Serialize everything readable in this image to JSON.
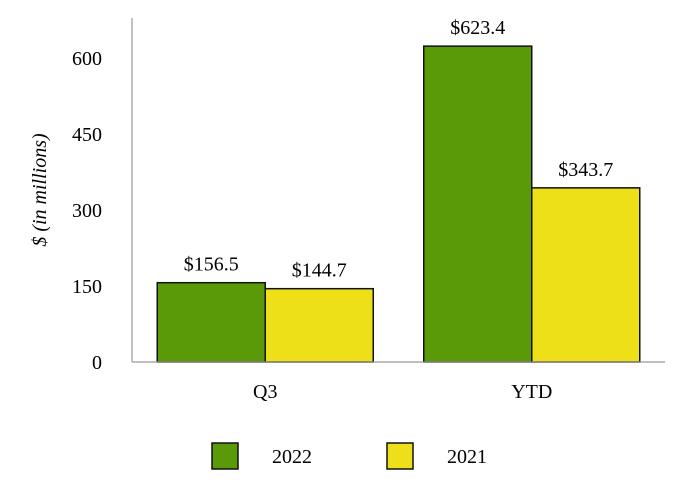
{
  "chart_data": {
    "type": "bar",
    "ylabel": "$ (in millions)",
    "ylim": [
      0,
      600
    ],
    "yticks": [
      0,
      150,
      300,
      450,
      600
    ],
    "categories": [
      "Q3",
      "YTD"
    ],
    "series": [
      {
        "name": "2022",
        "color": "#5a9a08",
        "values": [
          156.5,
          623.4
        ],
        "labels": [
          "$156.5",
          "$623.4"
        ]
      },
      {
        "name": "2021",
        "color": "#ede018",
        "values": [
          144.7,
          343.7
        ],
        "labels": [
          "$144.7",
          "$343.7"
        ]
      }
    ],
    "grid": false,
    "legend": "bottom-center"
  }
}
